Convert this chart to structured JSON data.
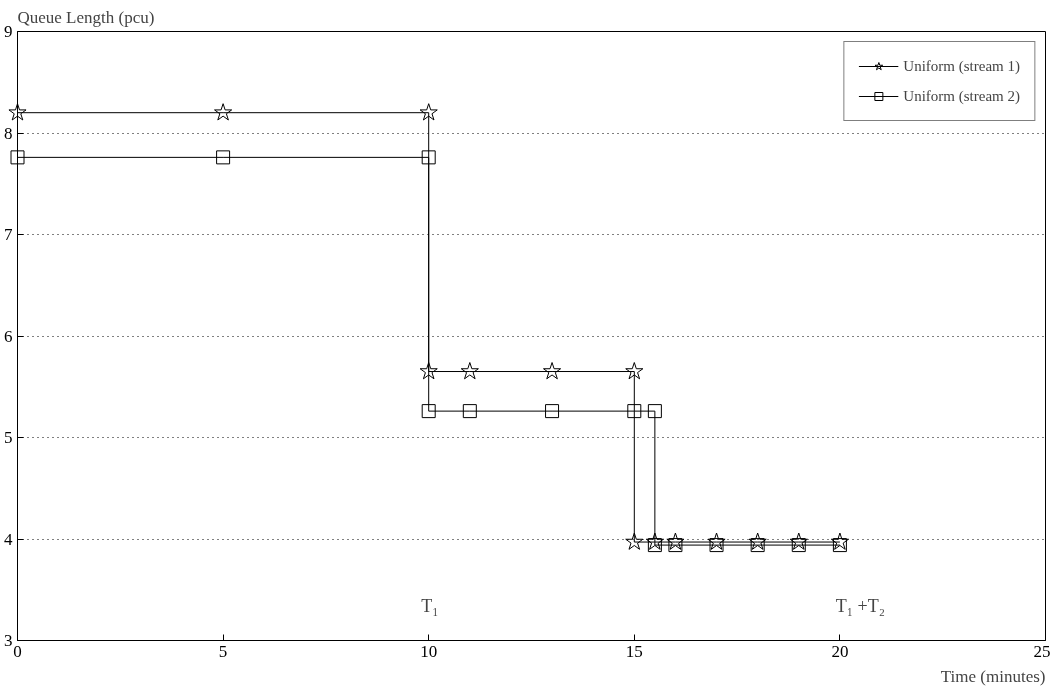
{
  "chart_data": {
    "type": "line",
    "xlabel": "Time (minutes)",
    "ylabel": "Queue Length (pcu)",
    "xlim": [
      0,
      25
    ],
    "ylim": [
      3,
      9
    ],
    "xticks": [
      0,
      5,
      10,
      15,
      20,
      25
    ],
    "yticks": [
      3,
      4,
      5,
      6,
      7,
      8,
      9
    ],
    "grid": "y",
    "legend": "top right",
    "line_style": "solid",
    "series": [
      {
        "name": "Uniform (stream 1)",
        "color": "#000000",
        "marker": "star",
        "x": [
          0,
          5,
          10,
          10,
          11,
          13,
          15,
          15,
          15.5,
          16,
          17,
          18,
          19,
          20
        ],
        "values": [
          8.2,
          8.2,
          8.2,
          5.65,
          5.65,
          5.65,
          5.65,
          3.97,
          3.97,
          3.97,
          3.97,
          3.97,
          3.97,
          3.97
        ]
      },
      {
        "name": "Uniform (stream 2)",
        "color": "#000000",
        "marker": "square",
        "x": [
          0,
          5,
          10,
          10,
          11,
          13,
          15,
          15.5,
          15.5,
          16,
          17,
          18,
          19,
          20
        ],
        "values": [
          7.76,
          7.76,
          7.76,
          5.26,
          5.26,
          5.26,
          5.26,
          5.26,
          3.94,
          3.94,
          3.94,
          3.94,
          3.94,
          3.94
        ]
      }
    ],
    "annotations": [
      "T₁",
      "T₁ +T₂"
    ]
  }
}
